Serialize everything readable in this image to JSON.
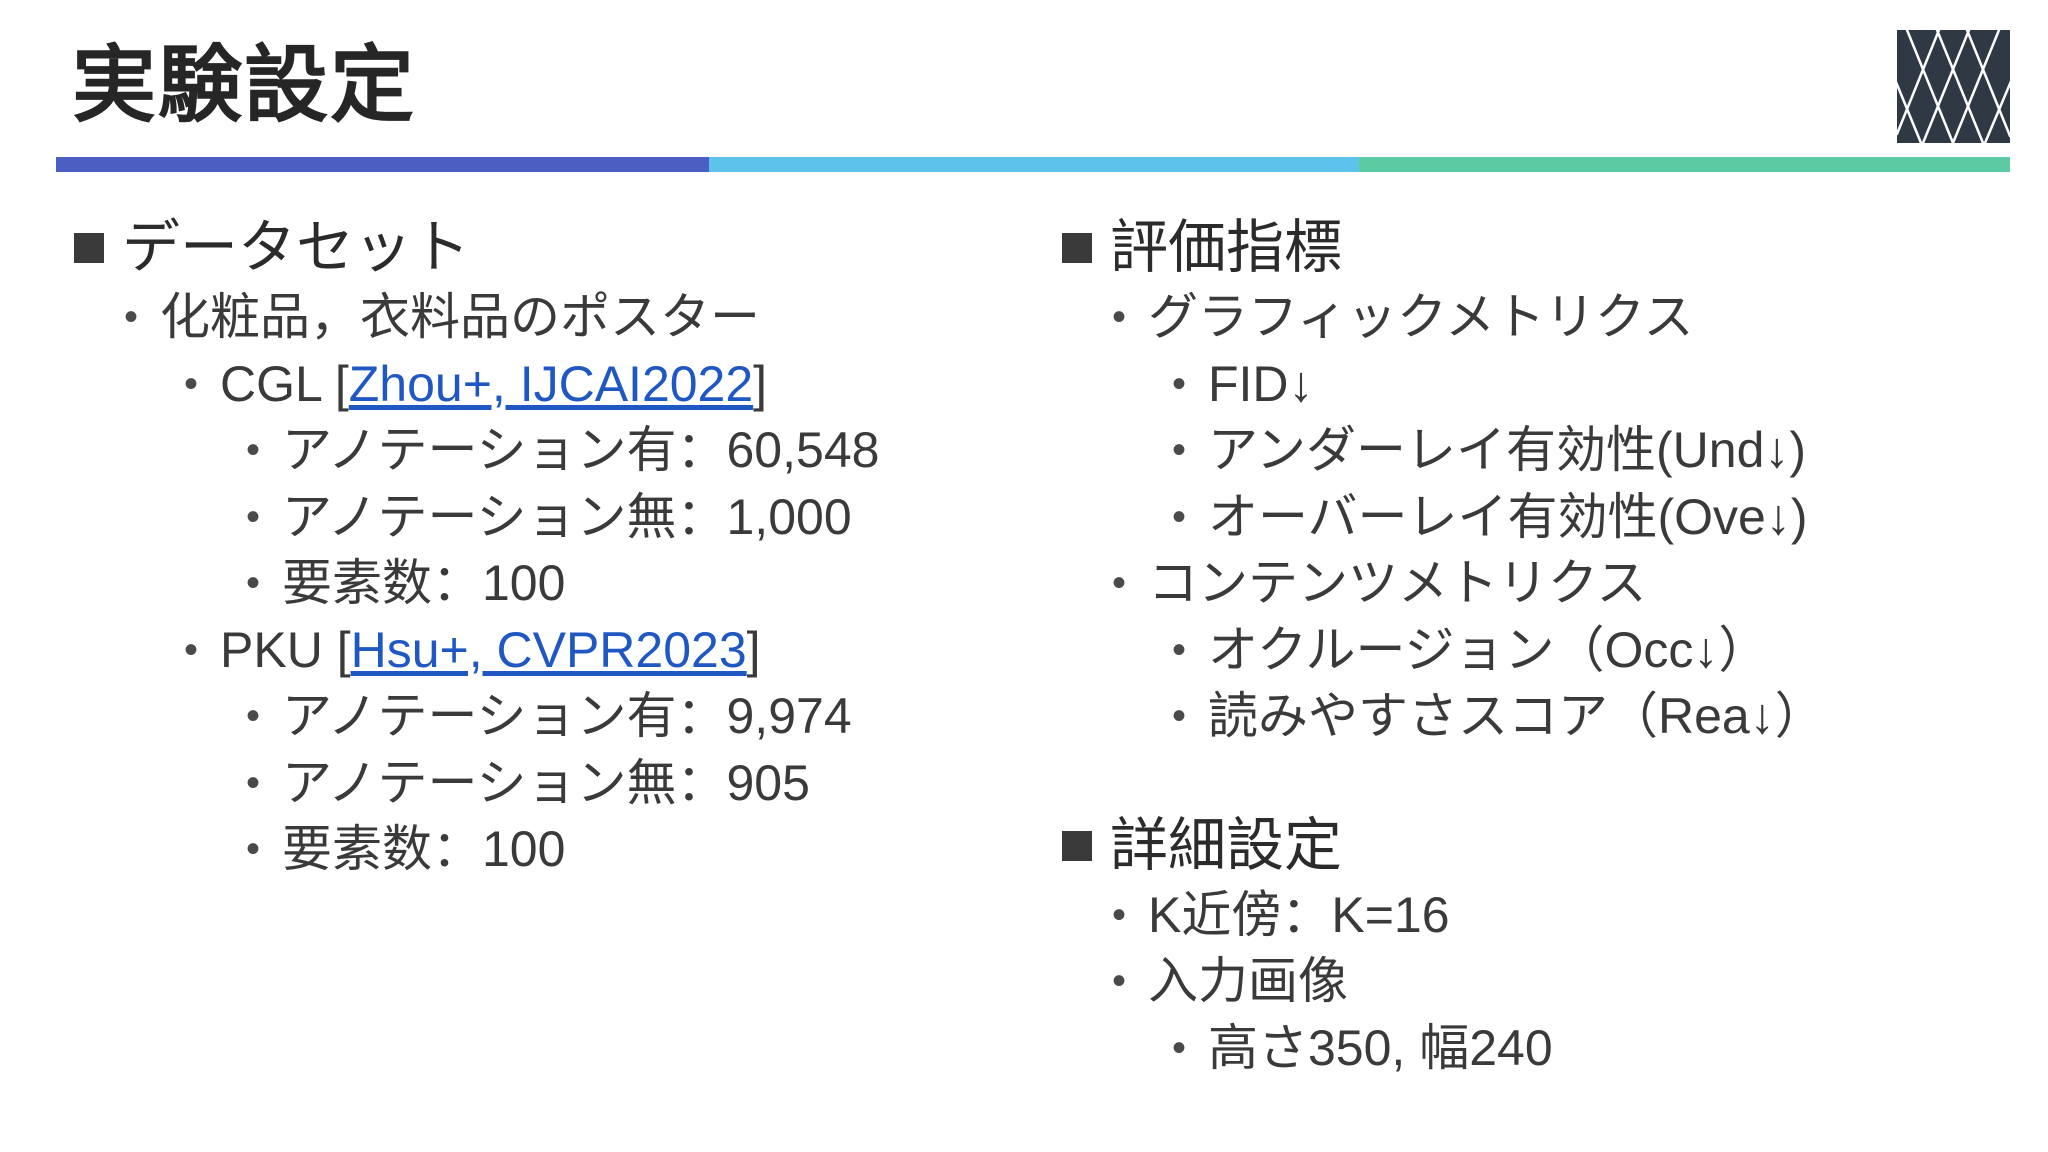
{
  "title": "実験設定",
  "colors": {
    "rule_blue": "#4a5fc1",
    "rule_cyan": "#5ec3ea",
    "rule_green": "#5ccaa3",
    "link": "#1f57c3",
    "logo_bg": "#2f3945"
  },
  "logo_icon": "diamond-lattice-logo",
  "left": {
    "heading": "データセット",
    "item_1": "化粧品，衣料品のポスター",
    "cgl": {
      "name": "CGL [",
      "ref": "Zhou+, IJCAI2022",
      "close": "]",
      "items": [
        "アノテーション有：60,548",
        "アノテーション無：1,000",
        "要素数：100"
      ]
    },
    "pku": {
      "name": "PKU [",
      "ref": "Hsu+, CVPR2023",
      "close": "]",
      "items": [
        "アノテーション有：9,974",
        "アノテーション無：905",
        "要素数：100"
      ]
    }
  },
  "right": {
    "heading": "評価指標",
    "graphic": {
      "label": "グラフィックメトリクス",
      "items": [
        "FID↓",
        "アンダーレイ有効性(Und↓)",
        "オーバーレイ有効性(Ove↓)"
      ]
    },
    "content": {
      "label": "コンテンツメトリクス",
      "items": [
        "オクルージョン（Occ↓）",
        "読みやすさスコア（Rea↓）"
      ]
    },
    "detail_heading": "詳細設定",
    "knn": "K近傍：K=16",
    "input": {
      "label": "入力画像",
      "items": [
        "高さ350, 幅240"
      ]
    }
  }
}
